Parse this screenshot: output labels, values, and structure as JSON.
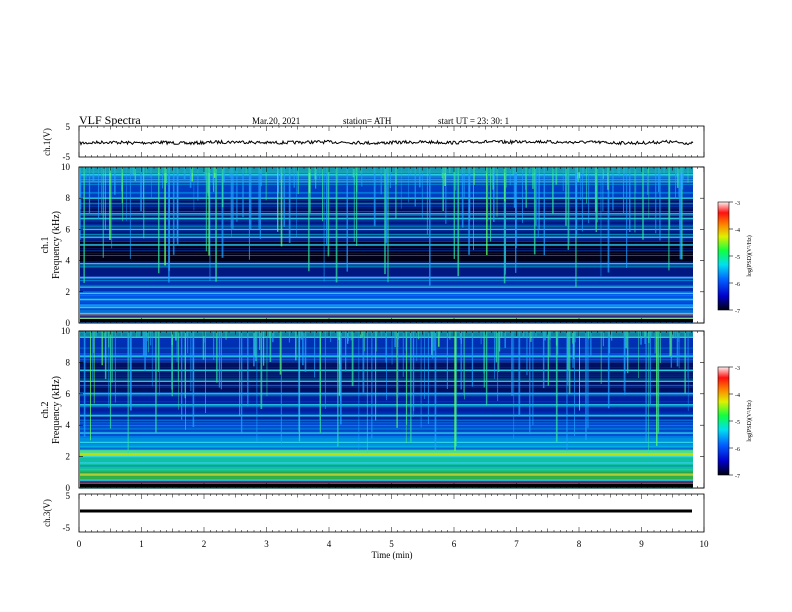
{
  "header": {
    "title": "VLF  Spectra",
    "date": "Mar.20, 2021",
    "station": "station= ATH",
    "start_ut": "start  UT  =    23: 30: 1"
  },
  "chart_data": [
    {
      "type": "line",
      "ylabel": "ch.1(V)",
      "ylim": [
        -5,
        5
      ],
      "yticks": [
        "5",
        "-5"
      ],
      "description_level": 0,
      "series": [
        {
          "values_amplitude_V": [
            -0.5,
            0.3,
            -0.3,
            0.1,
            -0.6,
            0.2,
            0.5,
            -0.2,
            0.0,
            0.4,
            0.2,
            -0.4,
            0.1,
            0.3,
            -0.1,
            0.6,
            0.2,
            0.8,
            0.1,
            0.3,
            -0.2,
            -0.4,
            0.5,
            -0.6
          ]
        }
      ]
    },
    {
      "type": "heatmap",
      "ylabel": "ch.1\nFrequency  (kHz)",
      "ylim": [
        0,
        10
      ],
      "yticks": [
        "0",
        "2",
        "4",
        "6",
        "8",
        "10"
      ],
      "xlim": [
        0,
        10
      ],
      "colorbar": {
        "label": "log(PSD)(V²/Hz)",
        "ticks": [
          "-3",
          "-4",
          "-5",
          "-6",
          "-7"
        ],
        "range": [
          -7,
          -3
        ]
      },
      "quiet_band_khz": [
        3.8,
        5.2
      ],
      "line_frequencies_khz": [
        0.3,
        0.6,
        1.0,
        1.5,
        1.9,
        2.3,
        2.9,
        3.8,
        5.0,
        5.5,
        6.0,
        6.7,
        7.0,
        8.0,
        9.5
      ]
    },
    {
      "type": "heatmap",
      "ylabel": "ch.2\nFrequency  (kHz)",
      "ylim": [
        0,
        10
      ],
      "yticks": [
        "0",
        "2",
        "4",
        "6",
        "8",
        "10"
      ],
      "xlim": [
        0,
        10
      ],
      "colorbar": {
        "label": "log(PSD)(V²/Hz)",
        "ticks": [
          "-3",
          "-4",
          "-5",
          "-6",
          "-7"
        ],
        "range": [
          -7,
          -3
        ]
      },
      "line_frequencies_khz": [
        0.5,
        0.9,
        1.6,
        2.0,
        2.3,
        2.9,
        3.5,
        4.6,
        5.3,
        6.0,
        6.8,
        7.5,
        8.4,
        9.6
      ]
    },
    {
      "type": "line",
      "ylabel": "ch.3(V)",
      "ylim": [
        -5,
        5
      ],
      "yticks": [
        "5",
        "-5"
      ],
      "xlabel": "Time  (min)",
      "xticks": [
        "0",
        "1",
        "2",
        "3",
        "4",
        "5",
        "6",
        "7",
        "8",
        "9",
        "10"
      ],
      "series": [
        {
          "constant_level_V": -1.0
        }
      ]
    }
  ]
}
